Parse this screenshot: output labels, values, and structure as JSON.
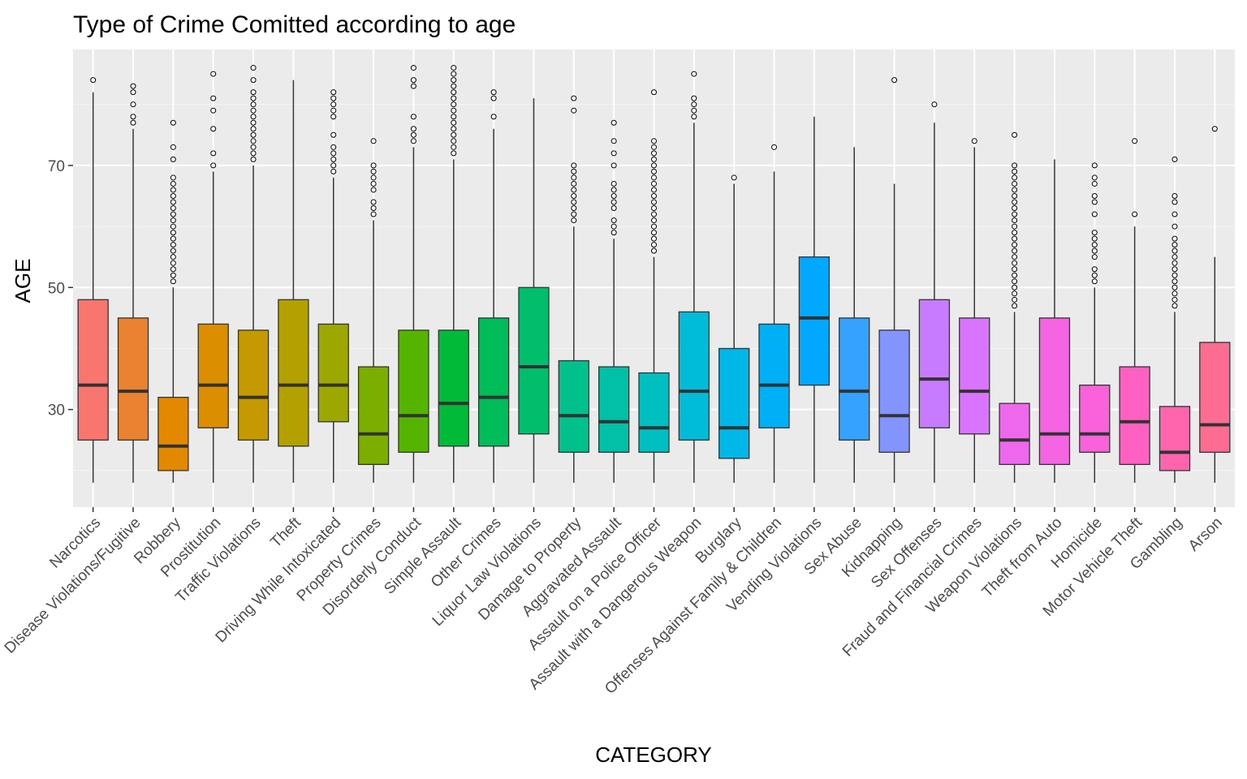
{
  "chart_data": {
    "type": "box",
    "title": "Type of Crime Comitted according to age",
    "xlabel": "CATEGORY",
    "ylabel": "AGE",
    "ylim": [
      14,
      89
    ],
    "yticks": [
      30,
      50,
      70
    ],
    "grid": true,
    "legend": "none",
    "categories": [
      {
        "name": "Narcotics",
        "color": "#F8766D",
        "whisker_low": 18,
        "q1": 25,
        "median": 34,
        "q3": 48,
        "whisker_high": 82,
        "outliers": [
          84
        ]
      },
      {
        "name": "Disease Violations/Fugitive",
        "color": "#EA8331",
        "whisker_low": 18,
        "q1": 25,
        "median": 33,
        "q3": 45,
        "whisker_high": 76,
        "outliers": [
          77,
          78,
          80,
          82,
          83
        ]
      },
      {
        "name": "Robbery",
        "color": "#E38900",
        "whisker_low": 18,
        "q1": 20,
        "median": 24,
        "q3": 32,
        "whisker_high": 50,
        "outliers": [
          51,
          52,
          53,
          54,
          55,
          56,
          57,
          58,
          59,
          60,
          61,
          62,
          63,
          64,
          65,
          66,
          67,
          68,
          71,
          73,
          77
        ]
      },
      {
        "name": "Prostitution",
        "color": "#DB8E00",
        "whisker_low": 18,
        "q1": 27,
        "median": 34,
        "q3": 44,
        "whisker_high": 69,
        "outliers": [
          70,
          72,
          76,
          79,
          81,
          85
        ]
      },
      {
        "name": "Traffic Violations",
        "color": "#C49A00",
        "whisker_low": 18,
        "q1": 25,
        "median": 32,
        "q3": 43,
        "whisker_high": 70,
        "outliers": [
          71,
          72,
          73,
          74,
          75,
          76,
          77,
          78,
          79,
          80,
          81,
          82,
          84,
          86
        ]
      },
      {
        "name": "Theft",
        "color": "#B2A100",
        "whisker_low": 18,
        "q1": 24,
        "median": 34,
        "q3": 48,
        "whisker_high": 84,
        "outliers": []
      },
      {
        "name": "Driving While Intoxicated",
        "color": "#9CA700",
        "whisker_low": 18,
        "q1": 28,
        "median": 34,
        "q3": 44,
        "whisker_high": 68,
        "outliers": [
          69,
          70,
          71,
          72,
          73,
          75,
          78,
          79,
          80,
          81,
          82
        ]
      },
      {
        "name": "Property Crimes",
        "color": "#7CAE00",
        "whisker_low": 18,
        "q1": 21,
        "median": 26,
        "q3": 37,
        "whisker_high": 61,
        "outliers": [
          62,
          63,
          64,
          66,
          67,
          68,
          69,
          70,
          74
        ]
      },
      {
        "name": "Disorderly Conduct",
        "color": "#55B400",
        "whisker_low": 18,
        "q1": 23,
        "median": 29,
        "q3": 43,
        "whisker_high": 73,
        "outliers": [
          74,
          75,
          76,
          78,
          83,
          84,
          86
        ]
      },
      {
        "name": "Simple Assault",
        "color": "#00BA38",
        "whisker_low": 18,
        "q1": 24,
        "median": 31,
        "q3": 43,
        "whisker_high": 71,
        "outliers": [
          72,
          73,
          74,
          75,
          76,
          77,
          78,
          79,
          80,
          81,
          82,
          83,
          84,
          85,
          86
        ]
      },
      {
        "name": "Other Crimes",
        "color": "#00BC59",
        "whisker_low": 18,
        "q1": 24,
        "median": 32,
        "q3": 45,
        "whisker_high": 76,
        "outliers": [
          78,
          81,
          82
        ]
      },
      {
        "name": "Liquor Law Violations",
        "color": "#00BE6C",
        "whisker_low": 18,
        "q1": 26,
        "median": 37,
        "q3": 50,
        "whisker_high": 81,
        "outliers": []
      },
      {
        "name": "Damage to Property",
        "color": "#00C08B",
        "whisker_low": 18,
        "q1": 23,
        "median": 29,
        "q3": 38,
        "whisker_high": 60,
        "outliers": [
          61,
          62,
          63,
          64,
          65,
          66,
          67,
          68,
          69,
          70,
          79,
          81
        ]
      },
      {
        "name": "Aggravated Assault",
        "color": "#00C0A8",
        "whisker_low": 18,
        "q1": 23,
        "median": 28,
        "q3": 37,
        "whisker_high": 58,
        "outliers": [
          59,
          60,
          61,
          63,
          64,
          65,
          66,
          67,
          70,
          72,
          74,
          77
        ]
      },
      {
        "name": "Assault on a Police Officer",
        "color": "#00BFC0",
        "whisker_low": 18,
        "q1": 23,
        "median": 27,
        "q3": 36,
        "whisker_high": 55,
        "outliers": [
          56,
          57,
          58,
          59,
          60,
          61,
          62,
          63,
          64,
          65,
          66,
          67,
          68,
          69,
          70,
          71,
          72,
          73,
          74,
          82
        ]
      },
      {
        "name": "Assault with a Dangerous Weapon",
        "color": "#00BCD8",
        "whisker_low": 18,
        "q1": 25,
        "median": 33,
        "q3": 46,
        "whisker_high": 77,
        "outliers": [
          78,
          79,
          80,
          81,
          85
        ]
      },
      {
        "name": "Burglary",
        "color": "#00B8E7",
        "whisker_low": 18,
        "q1": 22,
        "median": 27,
        "q3": 40,
        "whisker_high": 67,
        "outliers": [
          68
        ]
      },
      {
        "name": "Offenses Against Family & Children",
        "color": "#00B0F6",
        "whisker_low": 18,
        "q1": 27,
        "median": 34,
        "q3": 44,
        "whisker_high": 69,
        "outliers": [
          73
        ]
      },
      {
        "name": "Vending Violations",
        "color": "#00A9FF",
        "whisker_low": 18,
        "q1": 34,
        "median": 45,
        "q3": 55,
        "whisker_high": 78,
        "outliers": []
      },
      {
        "name": "Sex Abuse",
        "color": "#35A2FF",
        "whisker_low": 18,
        "q1": 25,
        "median": 33,
        "q3": 45,
        "whisker_high": 73,
        "outliers": []
      },
      {
        "name": "Kidnapping",
        "color": "#8494FF",
        "whisker_low": 18,
        "q1": 23,
        "median": 29,
        "q3": 43,
        "whisker_high": 67,
        "outliers": [
          84
        ]
      },
      {
        "name": "Sex Offenses",
        "color": "#C77CFF",
        "whisker_low": 18,
        "q1": 27,
        "median": 35,
        "q3": 48,
        "whisker_high": 77,
        "outliers": [
          80
        ]
      },
      {
        "name": "Fraud and Financial Crimes",
        "color": "#D874FD",
        "whisker_low": 18,
        "q1": 26,
        "median": 33,
        "q3": 45,
        "whisker_high": 73,
        "outliers": [
          74
        ]
      },
      {
        "name": "Weapon Violations",
        "color": "#ED68ED",
        "whisker_low": 18,
        "q1": 21,
        "median": 25,
        "q3": 31,
        "whisker_high": 46,
        "outliers": [
          47,
          48,
          49,
          50,
          51,
          52,
          53,
          54,
          55,
          56,
          57,
          58,
          59,
          60,
          61,
          62,
          63,
          64,
          65,
          66,
          67,
          68,
          69,
          70,
          75
        ]
      },
      {
        "name": "Theft from Auto",
        "color": "#F564E3",
        "whisker_low": 18,
        "q1": 21,
        "median": 26,
        "q3": 45,
        "whisker_high": 71,
        "outliers": []
      },
      {
        "name": "Homicide",
        "color": "#FA62DB",
        "whisker_low": 18,
        "q1": 23,
        "median": 26,
        "q3": 34,
        "whisker_high": 50,
        "outliers": [
          51,
          52,
          53,
          55,
          56,
          57,
          58,
          59,
          62,
          64,
          65,
          67,
          68,
          70
        ]
      },
      {
        "name": "Motor Vehicle Theft",
        "color": "#FF61C3",
        "whisker_low": 18,
        "q1": 21,
        "median": 28,
        "q3": 37,
        "whisker_high": 60,
        "outliers": [
          62,
          74
        ]
      },
      {
        "name": "Gambling",
        "color": "#FF65AC",
        "whisker_low": 18,
        "q1": 20,
        "median": 23,
        "q3": 30.5,
        "whisker_high": 46,
        "outliers": [
          47,
          48,
          49,
          50,
          51,
          52,
          53,
          54,
          55,
          56,
          57,
          58,
          60,
          62,
          64,
          65,
          71
        ]
      },
      {
        "name": "Arson",
        "color": "#FF6C91",
        "whisker_low": 18,
        "q1": 23,
        "median": 27.5,
        "q3": 41,
        "whisker_high": 55,
        "outliers": [
          76
        ]
      }
    ]
  }
}
